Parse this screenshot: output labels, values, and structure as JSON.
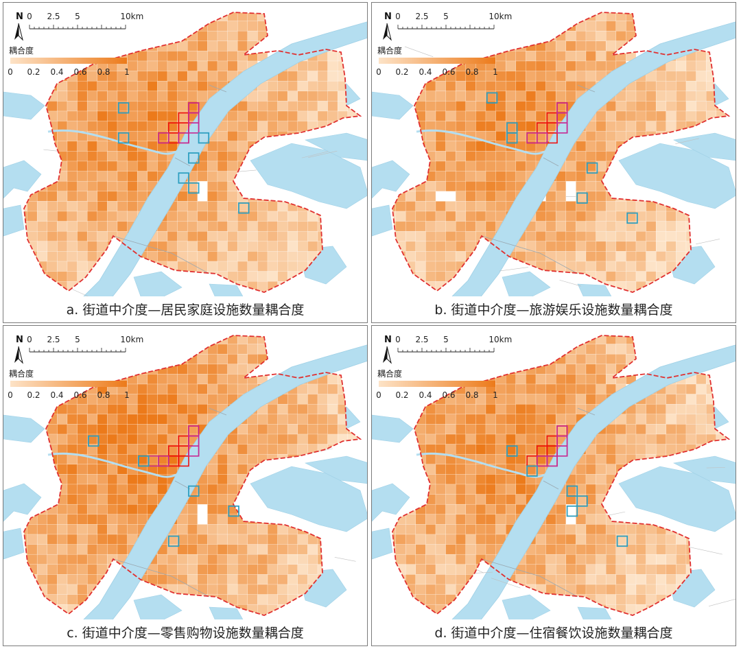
{
  "scale": {
    "north_label": "N",
    "ticks": [
      "0",
      "2.5",
      "5",
      "10"
    ],
    "unit": "km"
  },
  "legend": {
    "title": "耦合度",
    "ticks": [
      "0",
      "0.2",
      "0.4",
      "0.6",
      "0.8",
      "1"
    ],
    "color_low": "#fde3c7",
    "color_high": "#ec7a1a"
  },
  "colors": {
    "river": "#b4def0",
    "river_stroke": "#9fd0e6",
    "boundary": "#e03030",
    "highlight_red": "#ee1111",
    "highlight_magenta": "#c12aa3",
    "highlight_blue": "#2e9fc0",
    "road": "#bfbfbf"
  },
  "panels": [
    {
      "id": "a",
      "caption": "a. 街道中介度—居民家庭设施数量耦合度"
    },
    {
      "id": "b",
      "caption": "b. 街道中介度—旅游娱乐设施数量耦合度"
    },
    {
      "id": "c",
      "caption": "c. 街道中介度—零售购物设施数量耦合度"
    },
    {
      "id": "d",
      "caption": "d. 街道中介度—住宿餐饮设施数量耦合度"
    }
  ]
}
